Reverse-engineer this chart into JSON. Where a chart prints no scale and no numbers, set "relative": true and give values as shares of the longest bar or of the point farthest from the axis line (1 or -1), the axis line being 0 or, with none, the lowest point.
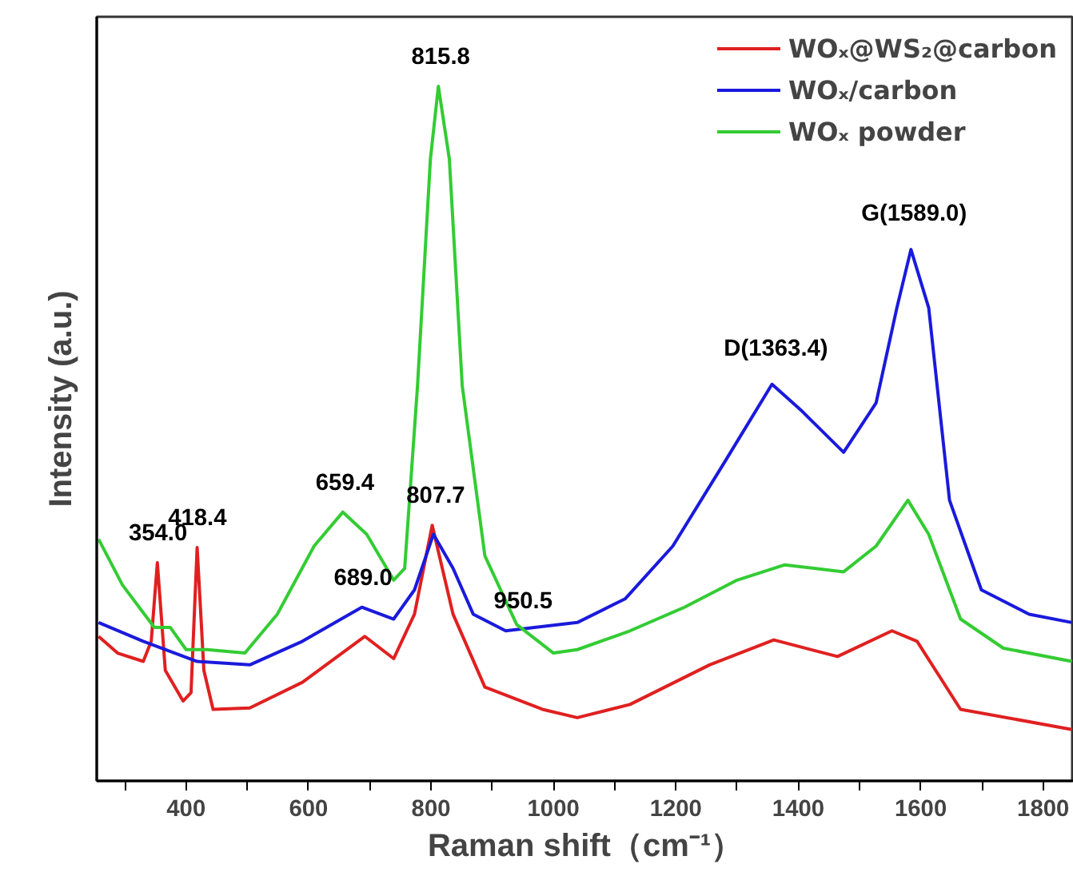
{
  "chart_data": {
    "type": "line",
    "relative": true,
    "xlabel": "Raman shift（cm⁻¹）",
    "ylabel": "Intensity (a.u.)",
    "xlim": [
      254,
      1850
    ],
    "xticks": [
      {
        "value": 300,
        "label": null
      },
      400,
      {
        "value": 500,
        "label": null
      },
      600,
      {
        "value": 700,
        "label": null
      },
      800,
      {
        "value": 900,
        "label": null
      },
      1000,
      {
        "value": 1100,
        "label": null
      },
      1200,
      {
        "value": 1300,
        "label": null
      },
      1400,
      {
        "value": 1500,
        "label": null
      },
      1600,
      {
        "value": 1700,
        "label": null
      },
      1800
    ],
    "grid": false,
    "legend": "top right",
    "marker": "none",
    "line_style": "solid",
    "series": [
      {
        "name": "WOₓ@WS₂@carbon",
        "color": "#e02020",
        "x": [
          257,
          288,
          330,
          343,
          353,
          366,
          395,
          408,
          418,
          429,
          444,
          504,
          590,
          692,
          739,
          773,
          802,
          836,
          888,
          982,
          1039,
          1125,
          1255,
          1360,
          1464,
          1553,
          1594,
          1665,
          1847
        ],
        "values": [
          0.208,
          0.184,
          0.172,
          0.201,
          0.314,
          0.159,
          0.115,
          0.127,
          0.336,
          0.159,
          0.103,
          0.105,
          0.142,
          0.208,
          0.176,
          0.24,
          0.368,
          0.24,
          0.135,
          0.103,
          0.091,
          0.11,
          0.167,
          0.203,
          0.179,
          0.216,
          0.201,
          0.103,
          0.074
        ]
      },
      {
        "name": "WOₓ/carbon",
        "color": "#1a1adc",
        "x": [
          257,
          330,
          418,
          504,
          590,
          687,
          739,
          773,
          804,
          836,
          869,
          922,
          1039,
          1117,
          1195,
          1281,
          1357,
          1404,
          1474,
          1527,
          1561,
          1584,
          1613,
          1647,
          1699,
          1777,
          1847
        ],
        "values": [
          0.228,
          0.201,
          0.172,
          0.167,
          0.201,
          0.25,
          0.233,
          0.275,
          0.355,
          0.306,
          0.24,
          0.216,
          0.228,
          0.262,
          0.338,
          0.461,
          0.571,
          0.534,
          0.473,
          0.544,
          0.681,
          0.765,
          0.681,
          0.404,
          0.275,
          0.24,
          0.228
        ]
      },
      {
        "name": "WOₓ powder",
        "color": "#33cc33",
        "x": [
          257,
          296,
          348,
          374,
          400,
          434,
          496,
          549,
          609,
          656,
          695,
          739,
          757,
          778,
          799,
          812,
          830,
          851,
          888,
          940,
          1000,
          1039,
          1125,
          1214,
          1300,
          1378,
          1474,
          1527,
          1579,
          1613,
          1665,
          1735,
          1847
        ],
        "values": [
          0.348,
          0.282,
          0.221,
          0.221,
          0.189,
          0.189,
          0.184,
          0.24,
          0.338,
          0.387,
          0.355,
          0.289,
          0.306,
          0.569,
          0.895,
          1.0,
          0.895,
          0.569,
          0.324,
          0.225,
          0.184,
          0.189,
          0.216,
          0.25,
          0.289,
          0.311,
          0.301,
          0.338,
          0.404,
          0.355,
          0.233,
          0.191,
          0.172
        ]
      }
    ],
    "annotations": [
      {
        "text": "354.0",
        "x": 354.0,
        "y": 0.314
      },
      {
        "text": "418.4",
        "x": 418.4,
        "y": 0.336
      },
      {
        "text": "659.4",
        "x": 659.4,
        "y": 0.387
      },
      {
        "text": "689.0",
        "x": 689.0,
        "y": 0.25
      },
      {
        "text": "807.7",
        "x": 807.7,
        "y": 0.368
      },
      {
        "text": "815.8",
        "x": 815.8,
        "y": 1.0
      },
      {
        "text": "950.5",
        "x": 950.5,
        "y": 0.216
      },
      {
        "text": "D(1363.4)",
        "x": 1363.4,
        "y": 0.571
      },
      {
        "text": "G(1589.0)",
        "x": 1589.0,
        "y": 0.765
      }
    ]
  }
}
